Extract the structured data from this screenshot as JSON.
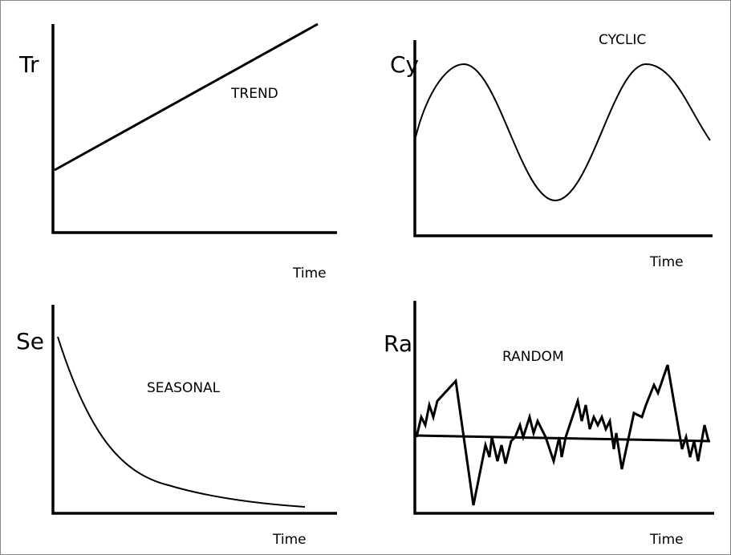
{
  "panels": [
    {
      "axis_label": "Tr",
      "title": "TREND",
      "x_label": "Time"
    },
    {
      "axis_label": "Cy",
      "title": "CYCLIC",
      "x_label": "Time"
    },
    {
      "axis_label": "Se",
      "title": "SEASONAL",
      "x_label": "Time"
    },
    {
      "axis_label": "Ra",
      "title": "RANDOM",
      "x_label": "Time"
    }
  ]
}
